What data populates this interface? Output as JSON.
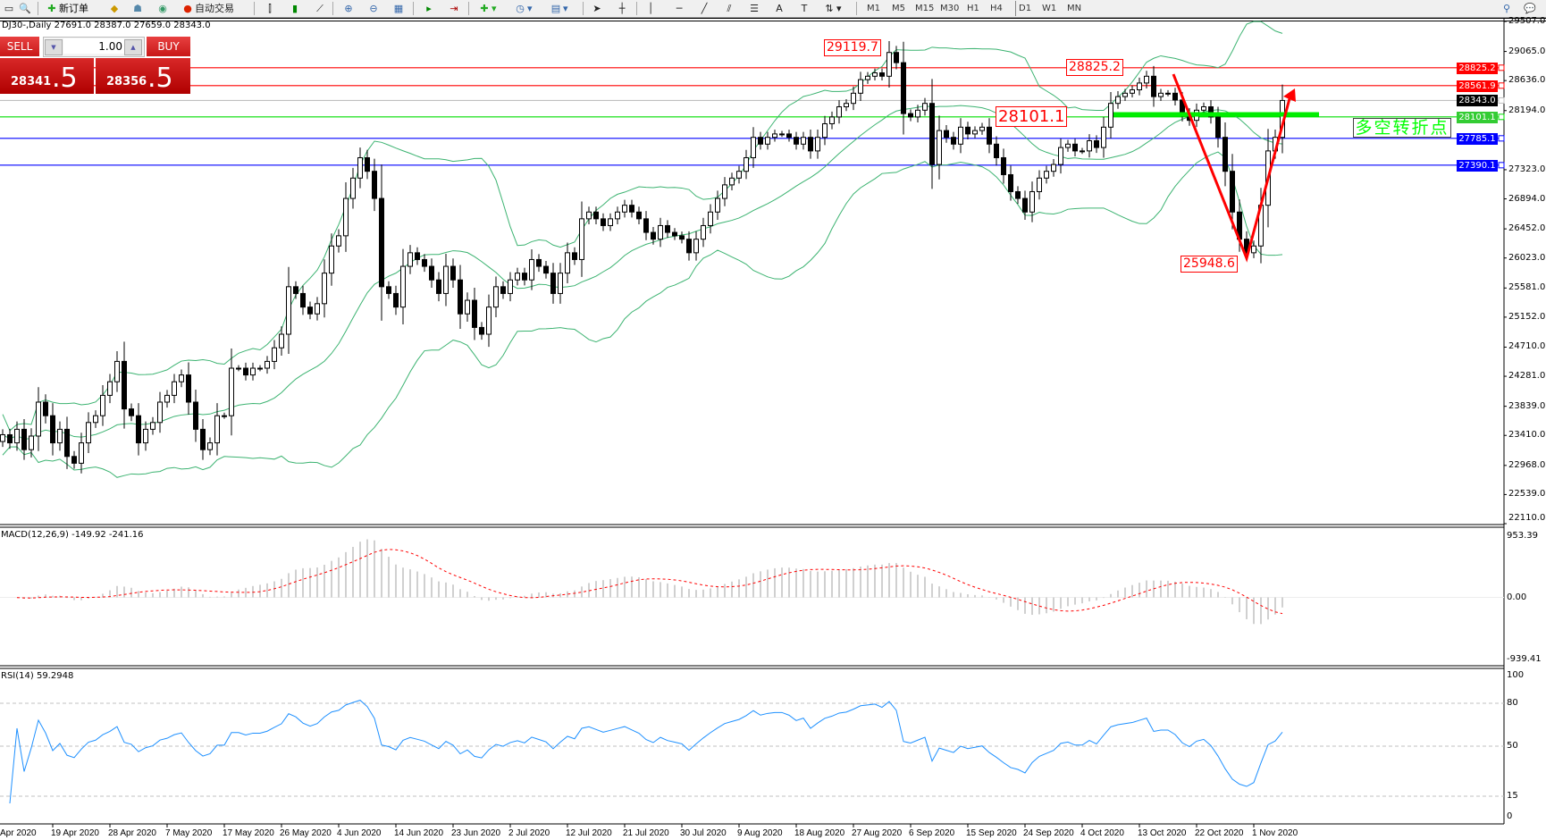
{
  "toolbar": {
    "new_order": "新订单",
    "auto_trading": "自动交易",
    "timeframes": [
      "M1",
      "M5",
      "M15",
      "M30",
      "H1",
      "H4",
      "D1",
      "W1",
      "MN"
    ],
    "active_timeframe": "D1",
    "icons": [
      "window-icon",
      "zoom-search-icon",
      "new-order-icon",
      "gold-icon",
      "trader-icon",
      "signal-icon",
      "auto-trading-icon",
      "bar-chart-icon",
      "candle-chart-icon",
      "line-chart-icon",
      "zoom-in-icon",
      "zoom-out-icon",
      "tile-icon",
      "autoscroll-icon",
      "chart-shift-icon",
      "indicators-icon",
      "periods-icon",
      "templates-icon",
      "cursor-icon",
      "crosshair-icon",
      "vertical-line-icon",
      "horizontal-line-icon",
      "trendline-icon",
      "equidistant-channel-icon",
      "fibonacci-icon",
      "text-icon",
      "text-label-icon",
      "arrows-icon",
      "search-icon",
      "chat-icon"
    ]
  },
  "symbol_header": "DJ30-,Daily  27691.0 28387.0 27659.0 28343.0",
  "one_click": {
    "sell_label": "SELL",
    "buy_label": "BUY",
    "lot": "1.00",
    "sell_price_main": "28341",
    "sell_price_pip": ".5",
    "buy_price_main": "28356",
    "buy_price_pip": ".5",
    "color": "#d42020"
  },
  "chart_data": [
    {
      "type": "candlestick",
      "symbol": "DJ30-",
      "timeframe": "Daily",
      "ylim": [
        22110,
        29507
      ],
      "y_ticks": [
        "29507.0",
        "29065.0",
        "28636.0",
        "28194.0",
        "27323.0",
        "26894.0",
        "26452.0",
        "26023.0",
        "25581.0",
        "25152.0",
        "24710.0",
        "24281.0",
        "23839.0",
        "23410.0",
        "22968.0",
        "22539.0",
        "22110.0"
      ],
      "x_tick_labels": [
        "Apr 2020",
        "19 Apr 2020",
        "28 Apr 2020",
        "7 May 2020",
        "17 May 2020",
        "26 May 2020",
        "4 Jun 2020",
        "14 Jun 2020",
        "23 Jun 2020",
        "2 Jul 2020",
        "12 Jul 2020",
        "21 Jul 2020",
        "30 Jul 2020",
        "9 Aug 2020",
        "18 Aug 2020",
        "27 Aug 2020",
        "6 Sep 2020",
        "15 Sep 2020",
        "24 Sep 2020",
        "4 Oct 2020",
        "13 Oct 2020",
        "22 Oct 2020",
        "1 Nov 2020"
      ],
      "close": [
        23420,
        23300,
        23500,
        23200,
        23400,
        23900,
        23700,
        23300,
        23500,
        23100,
        23000,
        23300,
        23600,
        23700,
        24000,
        24200,
        24500,
        23800,
        23700,
        23300,
        23500,
        23600,
        23900,
        24000,
        24200,
        24300,
        23900,
        23500,
        23200,
        23300,
        23700,
        23700,
        24400,
        24400,
        24300,
        24400,
        24400,
        24500,
        24700,
        24900,
        25600,
        25500,
        25300,
        25200,
        25350,
        25800,
        26200,
        26350,
        26900,
        27200,
        27500,
        27300,
        26900,
        25600,
        25500,
        25300,
        25900,
        26100,
        26000,
        25900,
        25700,
        25500,
        25900,
        25700,
        25200,
        25400,
        25000,
        24900,
        25300,
        25600,
        25500,
        25700,
        25800,
        25700,
        26000,
        25900,
        25800,
        25500,
        25800,
        26100,
        26000,
        26600,
        26700,
        26600,
        26500,
        26600,
        26700,
        26800,
        26700,
        26600,
        26400,
        26300,
        26500,
        26400,
        26350,
        26300,
        26100,
        26300,
        26500,
        26700,
        26900,
        27100,
        27200,
        27300,
        27500,
        27800,
        27700,
        27800,
        27850,
        27850,
        27800,
        27700,
        27800,
        27600,
        27800,
        28000,
        28100,
        28250,
        28300,
        28450,
        28650,
        28700,
        28750,
        28700,
        29050,
        28900,
        28150,
        28100,
        28200,
        28300,
        27400,
        27900,
        27800,
        27700,
        27950,
        27850,
        27900,
        27950,
        27700,
        27500,
        27250,
        27000,
        26900,
        26700,
        27000,
        27200,
        27300,
        27400,
        27650,
        27700,
        27600,
        27600,
        27750,
        27650,
        27950,
        28300,
        28400,
        28450,
        28500,
        28600,
        28700,
        28400,
        28450,
        28450,
        28350,
        28150,
        28050,
        28200,
        28250,
        28100,
        27800,
        27300,
        26700,
        26300,
        26100,
        26200,
        26800,
        27600,
        27800,
        28343
      ],
      "bollinger_color": "#3cb371",
      "horizontal_lines": [
        {
          "value": "28825.2",
          "color": "#ff0000"
        },
        {
          "value": "28561.9",
          "color": "#ff0000"
        },
        {
          "value": "28343.0",
          "color": "#000000",
          "line_color": "#c0c0c0"
        },
        {
          "value": "28101.1",
          "color": "#33cc33",
          "line_color": "#00dd00"
        },
        {
          "value": "27785.1",
          "color": "#0000ff"
        },
        {
          "value": "27390.1",
          "color": "#0000ff"
        }
      ],
      "annotations": [
        "29119.7",
        "28825.2",
        "28101.1",
        "25948.6"
      ],
      "turning_point_text": "多空转折点",
      "turning_point_color": "#00ff00",
      "arrow_color": "#ff0000"
    },
    {
      "type": "bar",
      "title": "MACD(12,26,9) -149.92 -241.16",
      "y_ticks": [
        "953.39",
        "0.00",
        "-939.41"
      ],
      "ylim": [
        -939.41,
        953.39
      ],
      "histogram_color": "#c0c0c0",
      "signal_color": "#ff0000"
    },
    {
      "type": "line",
      "title": "RSI(14) 59.2948",
      "y_ticks": [
        "100",
        "80",
        "50",
        "15",
        "0"
      ],
      "ylim": [
        0,
        100
      ],
      "levels": [
        80,
        50,
        15
      ],
      "line_color": "#1e90ff"
    }
  ]
}
